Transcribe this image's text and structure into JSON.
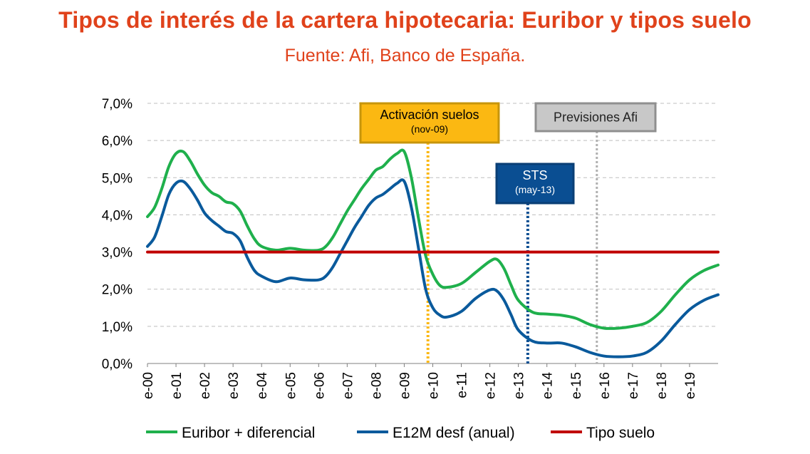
{
  "title": "Tipos de interés de la cartera hipotecaria: Euribor y tipos suelo",
  "subtitle": "Fuente: Afi, Banco de España.",
  "colors": {
    "title": "#e0421b",
    "euribor": "#1fb04c",
    "e12m": "#0a5a9c",
    "suelo": "#c00000",
    "activacion_fill": "#fbb812",
    "activacion_border": "#c7950b",
    "sts_fill": "#0a4e92",
    "previsiones_fill": "#c8c8c8",
    "previsiones_border": "#8f8f8f",
    "grid": "#bfbfbf"
  },
  "annotations": [
    {
      "id": "activacion",
      "title": "Activación suelos",
      "sub": "(nov-09)",
      "x": 2009.83,
      "line_color": "#fbb812"
    },
    {
      "id": "sts",
      "title": "STS",
      "sub": "(may-13)",
      "x": 2013.33,
      "line_color": "#0a4e92"
    },
    {
      "id": "previsiones",
      "title": "Previsiones Afi",
      "sub": "",
      "x": 2015.75,
      "line_color": "#b0b0b0"
    }
  ],
  "chart_data": {
    "type": "line",
    "title": "Tipos de interés de la cartera hipotecaria: Euribor y tipos suelo",
    "subtitle": "Fuente: Afi, Banco de España.",
    "xlabel": "",
    "ylabel": "",
    "ylim": [
      0,
      7
    ],
    "xlim": [
      2000,
      2020
    ],
    "y_ticks": [
      "0,0%",
      "1,0%",
      "2,0%",
      "3,0%",
      "4,0%",
      "5,0%",
      "6,0%",
      "7,0%"
    ],
    "x_ticks": [
      "e-00",
      "e-01",
      "e-02",
      "e-03",
      "e-04",
      "e-05",
      "e-06",
      "e-07",
      "e-08",
      "e-09",
      "e-10",
      "e-11",
      "e-12",
      "e-13",
      "e-14",
      "e-15",
      "e-16",
      "e-17",
      "e-18",
      "e-19"
    ],
    "grid": "horizontal dashed",
    "legend_position": "bottom",
    "series": [
      {
        "name": "Euribor + diferencial",
        "x": [
          2000,
          2000.25,
          2000.5,
          2000.75,
          2001,
          2001.25,
          2001.5,
          2001.75,
          2002,
          2002.25,
          2002.5,
          2002.75,
          2003,
          2003.25,
          2003.5,
          2003.75,
          2004,
          2004.5,
          2005,
          2005.5,
          2006,
          2006.25,
          2006.5,
          2006.75,
          2007,
          2007.25,
          2007.5,
          2007.75,
          2008,
          2008.25,
          2008.5,
          2008.75,
          2009,
          2009.25,
          2009.5,
          2009.75,
          2010,
          2010.25,
          2010.5,
          2011,
          2011.5,
          2012,
          2012.25,
          2012.5,
          2012.75,
          2013,
          2013.5,
          2014,
          2014.5,
          2015,
          2015.5,
          2016,
          2016.5,
          2017,
          2017.5,
          2018,
          2018.5,
          2019,
          2019.5,
          2020
        ],
        "values": [
          3.95,
          4.2,
          4.7,
          5.3,
          5.65,
          5.7,
          5.45,
          5.1,
          4.8,
          4.6,
          4.5,
          4.35,
          4.3,
          4.1,
          3.7,
          3.35,
          3.15,
          3.05,
          3.1,
          3.05,
          3.05,
          3.15,
          3.4,
          3.75,
          4.1,
          4.4,
          4.7,
          4.95,
          5.2,
          5.3,
          5.5,
          5.65,
          5.7,
          5.0,
          3.9,
          2.9,
          2.4,
          2.1,
          2.05,
          2.15,
          2.45,
          2.75,
          2.8,
          2.55,
          2.1,
          1.7,
          1.38,
          1.33,
          1.3,
          1.22,
          1.05,
          0.95,
          0.95,
          1.0,
          1.1,
          1.4,
          1.85,
          2.25,
          2.5,
          2.65
        ]
      },
      {
        "name": "E12M desf (anual)",
        "x": [
          2000,
          2000.25,
          2000.5,
          2000.75,
          2001,
          2001.25,
          2001.5,
          2001.75,
          2002,
          2002.25,
          2002.5,
          2002.75,
          2003,
          2003.25,
          2003.5,
          2003.75,
          2004,
          2004.5,
          2005,
          2005.5,
          2006,
          2006.25,
          2006.5,
          2006.75,
          2007,
          2007.25,
          2007.5,
          2007.75,
          2008,
          2008.25,
          2008.5,
          2008.75,
          2009,
          2009.25,
          2009.5,
          2009.75,
          2010,
          2010.25,
          2010.5,
          2011,
          2011.5,
          2012,
          2012.25,
          2012.5,
          2012.75,
          2013,
          2013.5,
          2014,
          2014.5,
          2015,
          2015.5,
          2016,
          2016.5,
          2017,
          2017.5,
          2018,
          2018.5,
          2019,
          2019.5,
          2020
        ],
        "values": [
          3.15,
          3.4,
          3.95,
          4.55,
          4.85,
          4.9,
          4.7,
          4.4,
          4.05,
          3.85,
          3.7,
          3.55,
          3.5,
          3.3,
          2.85,
          2.5,
          2.35,
          2.2,
          2.3,
          2.25,
          2.25,
          2.35,
          2.6,
          2.95,
          3.3,
          3.65,
          3.95,
          4.25,
          4.45,
          4.55,
          4.7,
          4.85,
          4.9,
          4.2,
          3.1,
          2.0,
          1.5,
          1.3,
          1.25,
          1.4,
          1.75,
          1.98,
          1.95,
          1.7,
          1.3,
          0.9,
          0.6,
          0.55,
          0.55,
          0.45,
          0.3,
          0.2,
          0.18,
          0.2,
          0.3,
          0.6,
          1.05,
          1.45,
          1.7,
          1.85
        ]
      },
      {
        "name": "Tipo suelo",
        "x": [
          2000,
          2020
        ],
        "values": [
          3.0,
          3.0
        ]
      }
    ]
  }
}
